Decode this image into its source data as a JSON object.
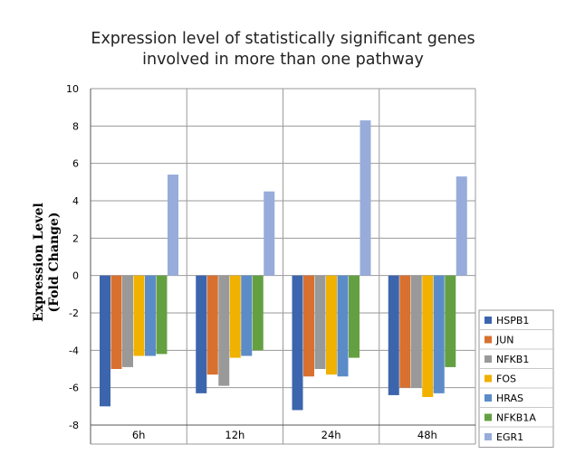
{
  "chart_data": {
    "type": "bar",
    "title": [
      "Expression level of statistically significant genes",
      "involved in more than one pathway"
    ],
    "ylabel": [
      "Expression Level",
      "(Fold Change)"
    ],
    "xlabel": "",
    "ylim": [
      -8,
      10
    ],
    "yticks": [
      "-8",
      "-6",
      "-4",
      "-2",
      "0",
      "2",
      "4",
      "6",
      "8",
      "10"
    ],
    "grid": true,
    "legend": "bottom-right",
    "categories": [
      "6h",
      "12h",
      "24h",
      "48h"
    ],
    "series": [
      {
        "name": "HSPB1",
        "color": "#3d65ad",
        "values": [
          -7.0,
          -6.3,
          -7.2,
          -6.4
        ]
      },
      {
        "name": "JUN",
        "color": "#d8702f",
        "values": [
          -5.0,
          -5.3,
          -5.4,
          -6.0
        ]
      },
      {
        "name": "NFKB1",
        "color": "#999999",
        "values": [
          -4.9,
          -5.9,
          -5.0,
          -6.0
        ]
      },
      {
        "name": "FOS",
        "color": "#f0b100",
        "values": [
          -4.3,
          -4.4,
          -5.3,
          -6.5
        ]
      },
      {
        "name": "HRAS",
        "color": "#5b8cc8",
        "values": [
          -4.3,
          -4.3,
          -5.4,
          -6.3
        ]
      },
      {
        "name": "NFKB1A",
        "color": "#64a042",
        "values": [
          -4.2,
          -4.0,
          -4.4,
          -4.9
        ]
      },
      {
        "name": "EGR1",
        "color": "#97acdb",
        "values": [
          5.4,
          4.5,
          8.3,
          5.3
        ]
      }
    ]
  }
}
